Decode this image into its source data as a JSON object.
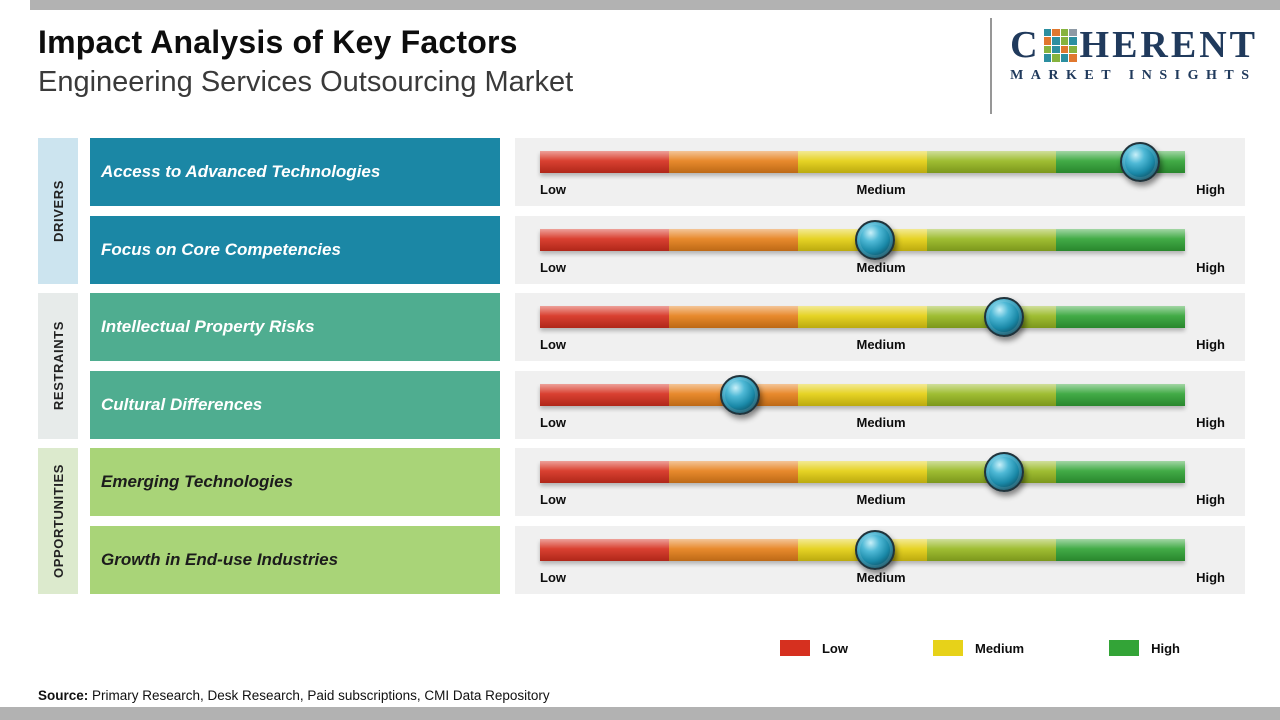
{
  "header": {
    "title": "Impact Analysis of Key Factors",
    "subtitle": "Engineering Services Outsourcing Market"
  },
  "logo": {
    "name_prefix": "C",
    "name_suffix": "HERENT",
    "tagline": "MARKET INSIGHTS",
    "brand_color": "#203a5c",
    "mosaic_colors": [
      "#2c8fa0",
      "#e0772e",
      "#86b33e",
      "#8e9aa5",
      "#e0772e",
      "#2c8fa0",
      "#86b33e",
      "#2c8fa0",
      "#86b33e",
      "#2c8fa0",
      "#e0772e",
      "#86b33e",
      "#2c8fa0",
      "#86b33e",
      "#2c8fa0",
      "#e0772e"
    ]
  },
  "scale_labels": {
    "low": "Low",
    "medium": "Medium",
    "high": "High"
  },
  "scale_colors": [
    "#d6301f",
    "#e6801b",
    "#e4cf12",
    "#97b822",
    "#32a437"
  ],
  "categories": [
    {
      "label": "DRIVERS",
      "band_color": "#cce4ef",
      "box_color": "#1b87a5",
      "text_color": "#ffffff",
      "factors": [
        {
          "name": "Access to Advanced Technologies",
          "impact_pct": 93
        },
        {
          "name": "Focus on Core Competencies",
          "impact_pct": 52
        }
      ]
    },
    {
      "label": "RESTRAINTS",
      "band_color": "#e7ebea",
      "box_color": "#4fad90",
      "text_color": "#ffffff",
      "factors": [
        {
          "name": "Intellectual Property Risks",
          "impact_pct": 72
        },
        {
          "name": "Cultural Differences",
          "impact_pct": 31
        }
      ]
    },
    {
      "label": "OPPORTUNITIES",
      "band_color": "#dceacd",
      "box_color": "#a9d478",
      "text_color": "#1c1c1c",
      "factors": [
        {
          "name": "Emerging Technologies",
          "impact_pct": 72
        },
        {
          "name": "Growth in End-use Industries",
          "impact_pct": 52
        }
      ]
    }
  ],
  "legend": [
    {
      "label": "Low",
      "color": "#d6301f"
    },
    {
      "label": "Medium",
      "color": "#e7d219"
    },
    {
      "label": "High",
      "color": "#33a437"
    }
  ],
  "source": {
    "prefix": "Source:",
    "text": " Primary Research, Desk Research, Paid subscriptions, CMI Data Repository"
  },
  "chart_data": {
    "type": "bar",
    "title": "Impact Analysis of Key Factors",
    "subtitle": "Engineering Services Outsourcing Market",
    "scale_ticks": [
      "Low",
      "Medium",
      "High"
    ],
    "xlim_pct": [
      0,
      100
    ],
    "groups": [
      {
        "group": "DRIVERS",
        "factor": "Access to Advanced Technologies",
        "impact_pct": 93
      },
      {
        "group": "DRIVERS",
        "factor": "Focus on Core Competencies",
        "impact_pct": 52
      },
      {
        "group": "RESTRAINTS",
        "factor": "Intellectual Property Risks",
        "impact_pct": 72
      },
      {
        "group": "RESTRAINTS",
        "factor": "Cultural Differences",
        "impact_pct": 31
      },
      {
        "group": "OPPORTUNITIES",
        "factor": "Emerging Technologies",
        "impact_pct": 72
      },
      {
        "group": "OPPORTUNITIES",
        "factor": "Growth in End-use Industries",
        "impact_pct": 52
      }
    ],
    "legend_entries": [
      "Low",
      "Medium",
      "High"
    ],
    "legend_position": "bottom",
    "grid": false
  }
}
